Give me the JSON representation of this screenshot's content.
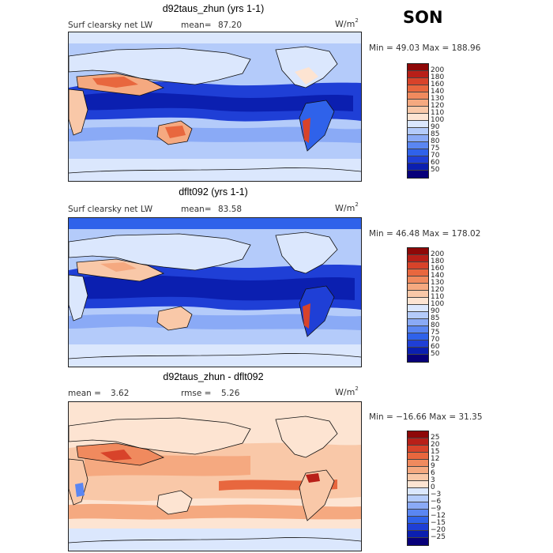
{
  "season": "SON",
  "colors": {
    "abs_scale": [
      "#08007a",
      "#0b1fb0",
      "#1f3fd6",
      "#2f62ea",
      "#5a86f2",
      "#8aaaf6",
      "#b4cbfa",
      "#dbe7fd",
      "#ffffff",
      "#fde4d2",
      "#f9c8a8",
      "#f5a980",
      "#f08a5e",
      "#e8673e",
      "#d8432a",
      "#b81f18",
      "#8e0808"
    ],
    "diff_scale": [
      "#08007a",
      "#0b1fb0",
      "#1f3fd6",
      "#2f62ea",
      "#5a86f2",
      "#8aaaf6",
      "#b4cbfa",
      "#dbe7fd",
      "#ffffff",
      "#fde4d2",
      "#f9c8a8",
      "#f5a980",
      "#f08a5e",
      "#e8673e",
      "#d8432a",
      "#b81f18",
      "#8e0808"
    ]
  },
  "panels": [
    {
      "title": "d92taus_zhun (yrs 1-1)",
      "variable": "Surf clearsky net LW",
      "mean_label": "mean=",
      "mean_value": "87.20",
      "unit": "W/m",
      "unit_exp": "2",
      "minmax": "Min =  49.03 Max = 188.96",
      "levels": [
        "200",
        "180",
        "160",
        "140",
        "130",
        "120",
        "110",
        "100",
        "90",
        "85",
        "80",
        "75",
        "70",
        "60",
        "50"
      ]
    },
    {
      "title": "dflt092 (yrs 1-1)",
      "variable": "Surf clearsky net LW",
      "mean_label": "mean=",
      "mean_value": "83.58",
      "unit": "W/m",
      "unit_exp": "2",
      "minmax": "Min =  46.48 Max = 178.02",
      "levels": [
        "200",
        "180",
        "160",
        "140",
        "130",
        "120",
        "110",
        "100",
        "90",
        "85",
        "80",
        "75",
        "70",
        "60",
        "50"
      ]
    },
    {
      "title": "d92taus_zhun - dflt092",
      "mean_label": "mean =",
      "mean_value": "3.62",
      "rmse_label": "rmse =",
      "rmse_value": "5.26",
      "unit": "W/m",
      "unit_exp": "2",
      "minmax": "Min = −16.66 Max =  31.35",
      "levels": [
        "25",
        "20",
        "15",
        "12",
        "9",
        "6",
        "3",
        "0",
        "−3",
        "−6",
        "−9",
        "−12",
        "−15",
        "−20",
        "−25"
      ]
    }
  ]
}
